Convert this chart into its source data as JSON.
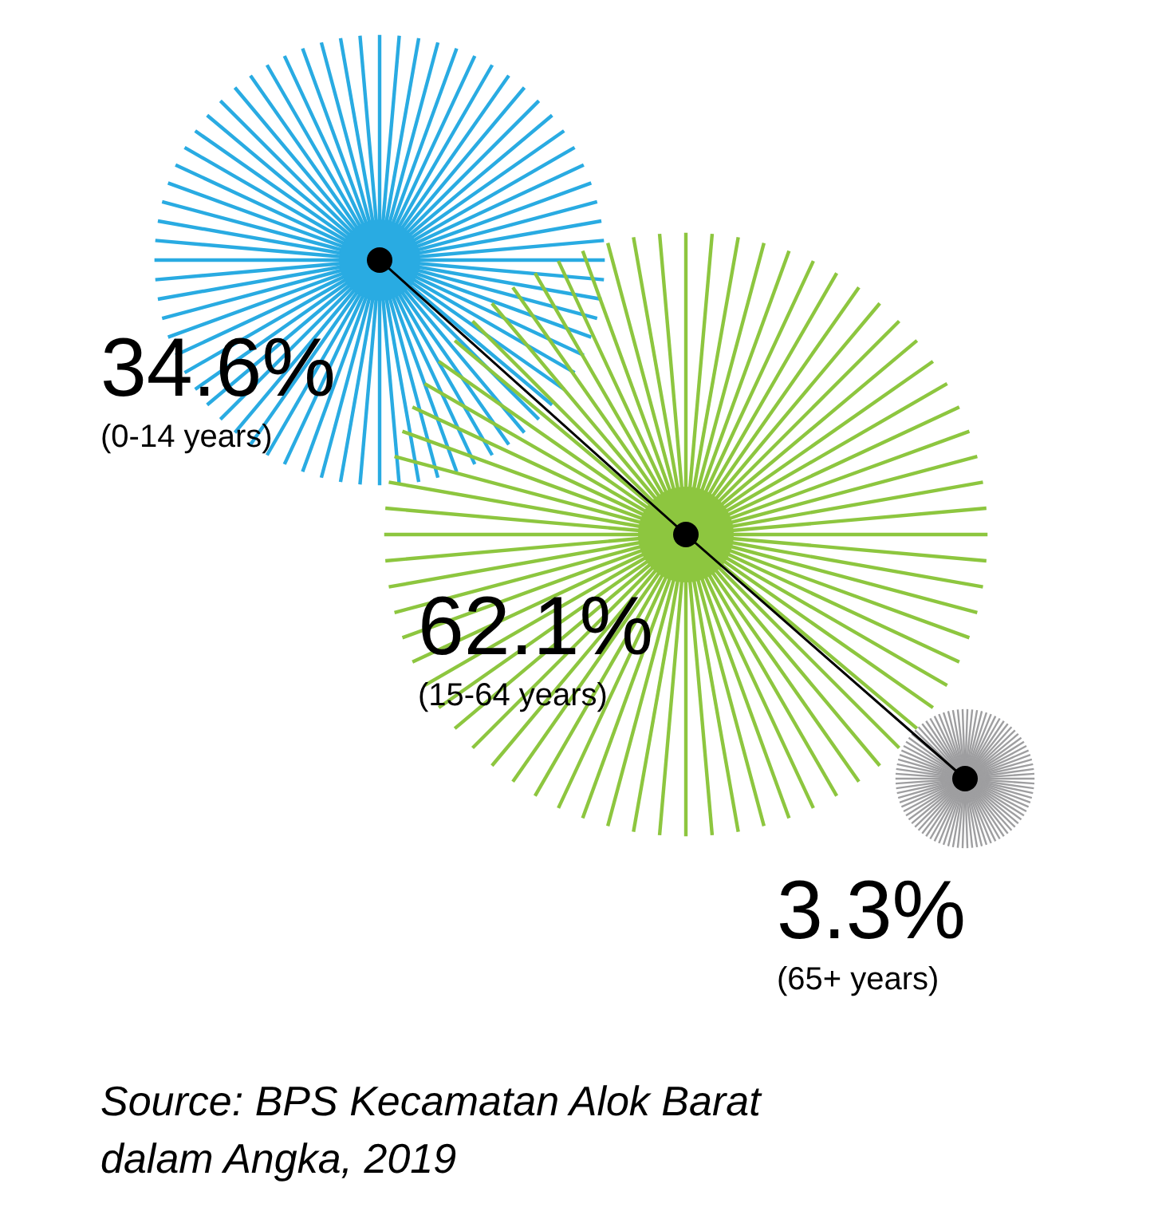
{
  "chart_data": {
    "type": "other",
    "categories": [
      "(0-14 years)",
      "(15-64 years)",
      "(65+ years)"
    ],
    "values": [
      34.6,
      62.1,
      3.3
    ],
    "value_labels": [
      "34.6%",
      "62.1%",
      "3.3%"
    ],
    "colors": [
      "#29abe2",
      "#8dc63f",
      "#9e9ea0"
    ],
    "annotations": [
      "Source: BPS Kecamatan Alok Barat dalam Angka, 2019"
    ]
  }
}
